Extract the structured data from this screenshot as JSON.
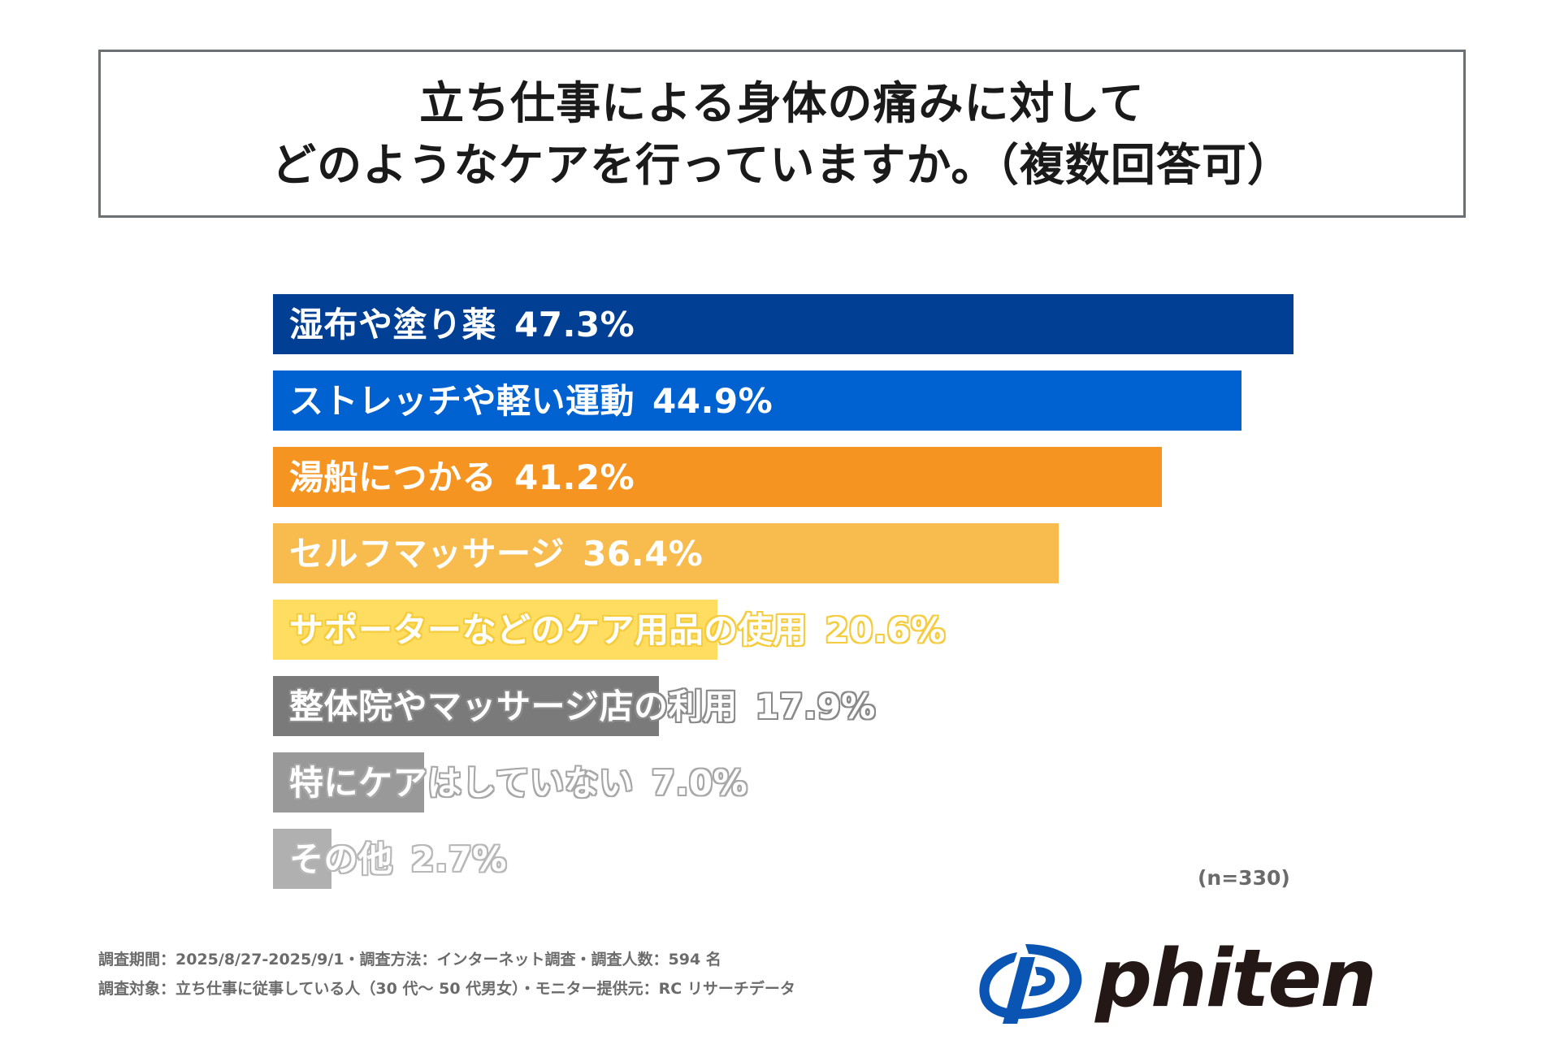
{
  "title": {
    "line1": "立ち仕事による身体の痛みに対して",
    "line2": "どのようなケアを行っていますか。（複数回答可）"
  },
  "chart_data": {
    "type": "bar",
    "orientation": "horizontal",
    "title": "立ち仕事による身体の痛みに対して どのようなケアを行っていますか。（複数回答可）",
    "unit": "%",
    "xlim": [
      0,
      47.3
    ],
    "categories": [
      "湿布や塗り薬",
      "ストレッチや軽い運動",
      "湯船につかる",
      "セルフマッサージ",
      "サポーターなどのケア用品の使用",
      "整体院やマッサージ店の利用",
      "特にケアはしていない",
      "その他"
    ],
    "values": [
      47.3,
      44.9,
      41.2,
      36.4,
      20.6,
      17.9,
      7.0,
      2.7
    ],
    "value_labels": [
      "47.3%",
      "44.9%",
      "41.2%",
      "36.4%",
      "20.6%",
      "17.9%",
      "7.0%",
      "2.7%"
    ],
    "colors": [
      "#003f94",
      "#0062d1",
      "#f59420",
      "#f8bb4e",
      "#fedd60",
      "#7a7a7a",
      "#999999",
      "#b0b0b0"
    ],
    "outline_colors": [
      "",
      "",
      "",
      "",
      "#f5cc3d",
      "#8a8a8a",
      "#a8a8a8",
      "#b8b8b8"
    ]
  },
  "sample_size": "(n=330)",
  "footer": {
    "line1": "調査期間：2025/8/27-2025/9/1・調査方法：インターネット調査・調査人数：594 名",
    "line2": "調査対象：立ち仕事に従事している人（30 代～ 50 代男女）・モニター提供元：RC リサーチデータ"
  },
  "logo": {
    "text": "phiten",
    "mark_color": "#0a55b4",
    "text_color": "#231815"
  }
}
